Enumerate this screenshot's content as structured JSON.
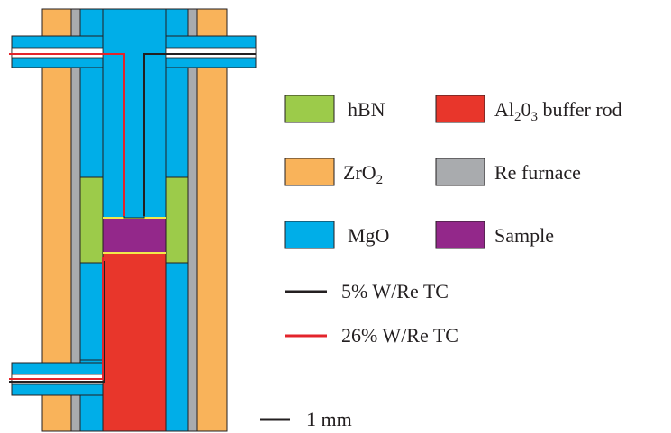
{
  "legend": {
    "materials": [
      {
        "id": "hbn",
        "label": "hBN",
        "color": "#9ccb4a"
      },
      {
        "id": "al2o3",
        "label_parts": [
          "Al",
          "2",
          "0",
          "3",
          " buffer rod"
        ],
        "color": "#e8362b"
      },
      {
        "id": "zro2",
        "label_parts": [
          "ZrO",
          "2"
        ],
        "color": "#f9b35a"
      },
      {
        "id": "re",
        "label": "Re furnace",
        "color": "#a9abae"
      },
      {
        "id": "mgo",
        "label": "MgO",
        "color": "#00aee8"
      },
      {
        "id": "sample",
        "label": "Sample",
        "color": "#93288a"
      }
    ],
    "lines": [
      {
        "id": "tc5",
        "label": "5% W/Re TC",
        "color": "#231f20"
      },
      {
        "id": "tc26",
        "label": "26% W/Re TC",
        "color": "#e3242b"
      }
    ],
    "scale": {
      "label": "1 mm",
      "color": "#231f20"
    }
  },
  "colors": {
    "outline": "#231f20",
    "insulator": "#ffffff",
    "sample_edge": "#f2e84b"
  }
}
